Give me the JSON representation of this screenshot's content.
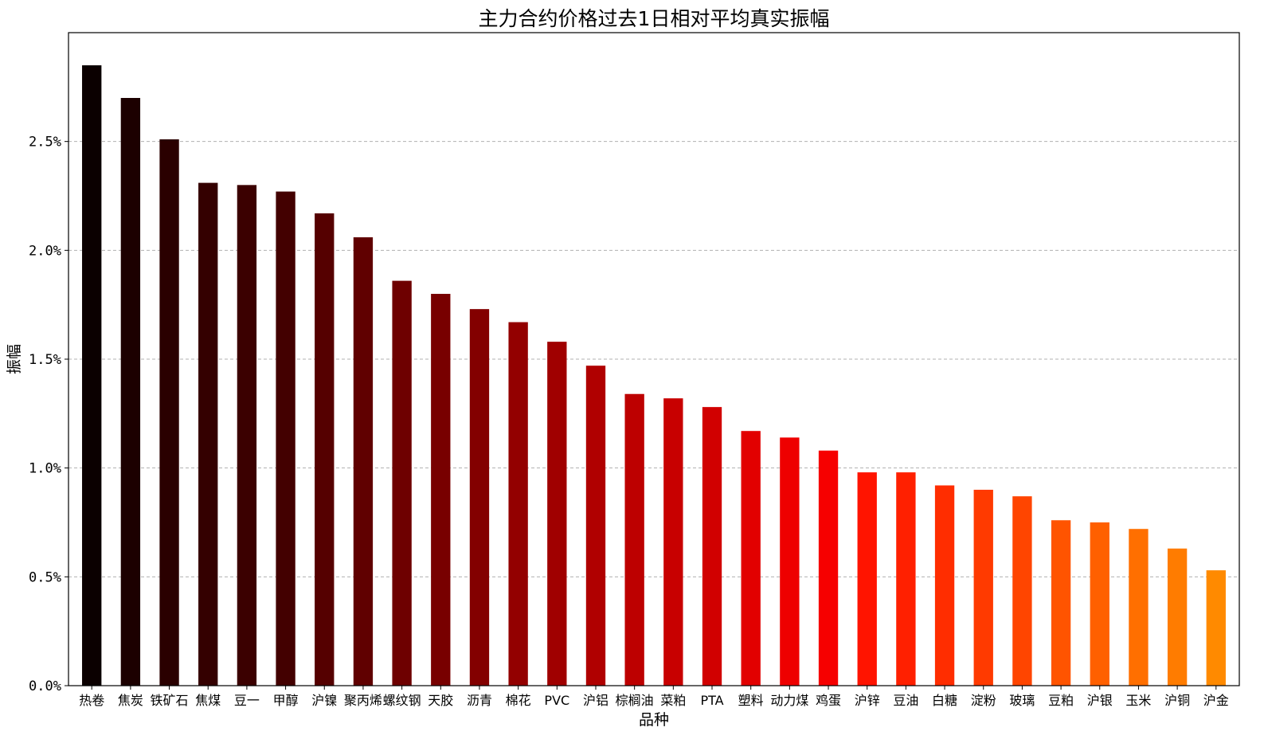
{
  "chart_data": {
    "type": "bar",
    "title": "主力合约价格过去1日相对平均真实振幅",
    "xlabel": "品种",
    "ylabel": "振幅",
    "ylim": [
      0,
      3.0
    ],
    "yticks": [
      0.0,
      0.5,
      1.0,
      1.5,
      2.0,
      2.5
    ],
    "ytick_labels": [
      "0.0%",
      "0.5%",
      "1.0%",
      "1.5%",
      "2.0%",
      "2.5%"
    ],
    "y_unit": "%",
    "grid": "horizontal dashed",
    "categories": [
      "热卷",
      "焦炭",
      "铁矿石",
      "焦煤",
      "豆一",
      "甲醇",
      "沪镍",
      "聚丙烯",
      "螺纹钢",
      "天胶",
      "沥青",
      "棉花",
      "PVC",
      "沪铝",
      "棕榈油",
      "菜粕",
      "PTA",
      "塑料",
      "动力煤",
      "鸡蛋",
      "沪锌",
      "豆油",
      "白糖",
      "淀粉",
      "玻璃",
      "豆粕",
      "沪银",
      "玉米",
      "沪铜",
      "沪金"
    ],
    "values": [
      2.85,
      2.7,
      2.51,
      2.31,
      2.3,
      2.27,
      2.17,
      2.06,
      1.86,
      1.8,
      1.73,
      1.67,
      1.58,
      1.47,
      1.34,
      1.32,
      1.28,
      1.17,
      1.14,
      1.08,
      0.98,
      0.98,
      0.92,
      0.9,
      0.87,
      0.76,
      0.75,
      0.72,
      0.63,
      0.53
    ],
    "colormap": "hot",
    "colors": [
      "#0b0000",
      "#1c0000",
      "#2a0000",
      "#340000",
      "#3b0000",
      "#430000",
      "#550000",
      "#600000",
      "#6e0000",
      "#780000",
      "#830000",
      "#930000",
      "#a00000",
      "#b00000",
      "#bd0000",
      "#c80000",
      "#d10000",
      "#e20000",
      "#ee0000",
      "#f60000",
      "#ff1400",
      "#ff2000",
      "#ff2d00",
      "#ff3a00",
      "#ff4500",
      "#ff5400",
      "#ff6000",
      "#ff6f00",
      "#ff7c00",
      "#ff8a00"
    ]
  }
}
